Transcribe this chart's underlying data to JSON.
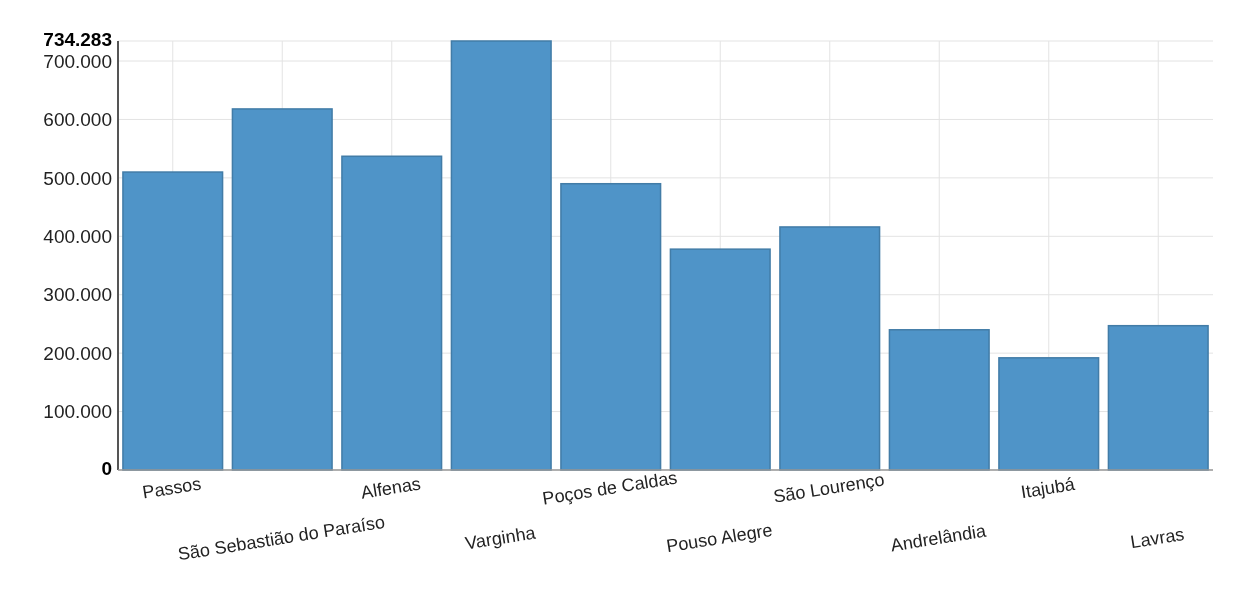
{
  "chart_data": {
    "type": "bar",
    "categories": [
      "Passos",
      "São Sebastião do Paraíso",
      "Alfenas",
      "Varginha",
      "Poços de Caldas",
      "Pouso Alegre",
      "São Lourenço",
      "Andrelândia",
      "Itajubá",
      "Lavras"
    ],
    "values": [
      510000,
      618000,
      537000,
      734283,
      490000,
      378000,
      416000,
      240000,
      192000,
      247000
    ],
    "color": "#4f94c8",
    "ylim": [
      0,
      734283
    ],
    "yticks": [
      {
        "value": 0,
        "label": "0"
      },
      {
        "value": 100000,
        "label": "100.000"
      },
      {
        "value": 200000,
        "label": "200.000"
      },
      {
        "value": 300000,
        "label": "300.000"
      },
      {
        "value": 400000,
        "label": "400.000"
      },
      {
        "value": 500000,
        "label": "500.000"
      },
      {
        "value": 600000,
        "label": "600.000"
      },
      {
        "value": 700000,
        "label": "700.000"
      },
      {
        "value": 734283,
        "label": "734.283"
      }
    ],
    "grid": true
  }
}
